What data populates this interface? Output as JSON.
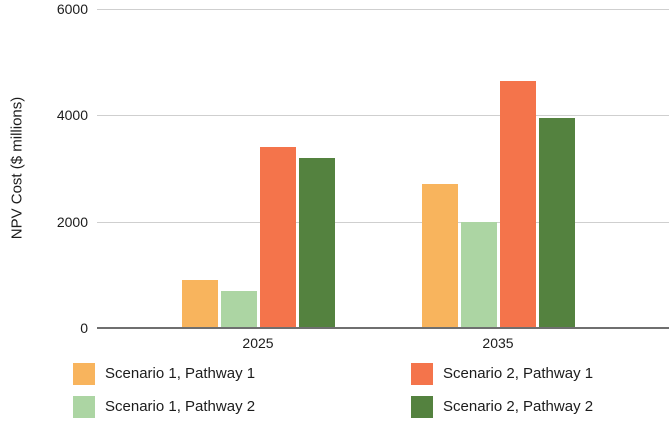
{
  "chart": {
    "y_axis_title": "NPV Cost ($ millions)",
    "y_ticks": [
      {
        "label": "6000",
        "value": 6000
      },
      {
        "label": "4000",
        "value": 4000
      },
      {
        "label": "2000",
        "value": 2000
      },
      {
        "label": "0",
        "value": 0
      }
    ],
    "colors": {
      "gridline": "#cfcfcf",
      "axis_line": "#6f6f6f",
      "text": "#1c1c1c"
    }
  },
  "chart_data": {
    "type": "bar",
    "title": "",
    "xlabel": "",
    "ylabel": "NPV Cost ($ millions)",
    "ylim": [
      0,
      6000
    ],
    "grid": true,
    "legend_position": "bottom",
    "categories": [
      "2025",
      "2035"
    ],
    "series": [
      {
        "name": "Scenario 1, Pathway 1",
        "color": "#f8b45d",
        "values": [
          900,
          2700
        ]
      },
      {
        "name": "Scenario 1, Pathway 2",
        "color": "#acd5a3",
        "values": [
          700,
          2000
        ]
      },
      {
        "name": "Scenario 2, Pathway 1",
        "color": "#f4744b",
        "values": [
          3400,
          4650
        ]
      },
      {
        "name": "Scenario 2, Pathway 2",
        "color": "#54823f",
        "values": [
          3200,
          3950
        ]
      }
    ]
  },
  "legend": {
    "columns": [
      [
        0,
        1
      ],
      [
        2,
        3
      ]
    ]
  }
}
